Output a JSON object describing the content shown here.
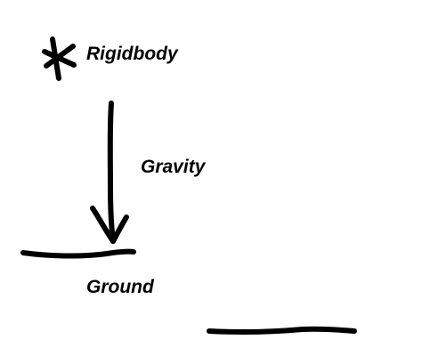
{
  "diagram": {
    "labels": {
      "rigidbody": "Rigidbody",
      "gravity": "Gravity",
      "ground": "Ground"
    },
    "elements": {
      "rigidbody_marker": "asterisk-icon",
      "gravity_arrow": "down-arrow-icon",
      "ground_line": "ground-line",
      "second_ground_line": "platform-line"
    },
    "colors": {
      "ink": "#000000",
      "background": "#ffffff"
    }
  }
}
